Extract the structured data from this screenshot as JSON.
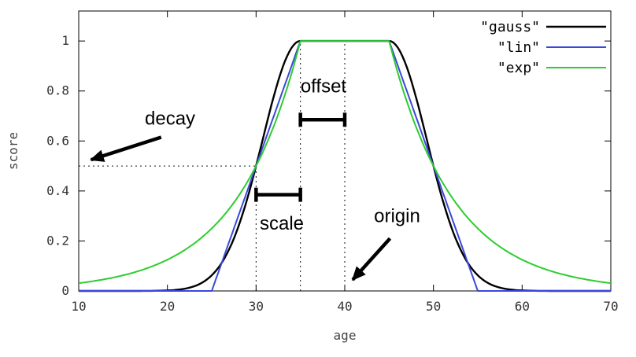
{
  "figure": {
    "background": "#ffffff",
    "border_color": "#000000",
    "guide_color": "#111111",
    "tick_label_color": "#333333",
    "axis_label_color": "#444444",
    "annotation_color": "#000000"
  },
  "chart_data": {
    "type": "line",
    "title": "",
    "xlabel": "age",
    "ylabel": "score",
    "xlim": [
      10,
      70
    ],
    "ylim": [
      0,
      1.12
    ],
    "x_ticks": [
      10,
      20,
      30,
      40,
      50,
      60,
      70
    ],
    "y_ticks": [
      0,
      0.2,
      0.4,
      0.6,
      0.8,
      1
    ],
    "grid": false,
    "legend_position": "top-right-inside",
    "decay_params": {
      "origin": 40,
      "offset": 5,
      "scale": 5,
      "decay": 0.5
    },
    "sample_ages": [
      10,
      15,
      20,
      25,
      30,
      35,
      40,
      45,
      50,
      55,
      60,
      65,
      70
    ],
    "series": [
      {
        "name": "\"gauss\"",
        "fn": "gauss",
        "color": "#000000",
        "width": 2.4,
        "sample_scores": [
          0,
          1.52e-05,
          0.00195,
          0.0625,
          0.5,
          1,
          1,
          1,
          0.5,
          0.0625,
          0.00195,
          1.52e-05,
          0
        ]
      },
      {
        "name": "\"lin\"",
        "fn": "lin",
        "color": "#3a48d8",
        "width": 2,
        "sample_scores": [
          0,
          0,
          0,
          0,
          0.5,
          1,
          1,
          1,
          0.5,
          0,
          0,
          0,
          0
        ]
      },
      {
        "name": "\"exp\"",
        "fn": "exp",
        "color": "#2ecc2e",
        "width": 2,
        "sample_scores": [
          0.031,
          0.063,
          0.125,
          0.25,
          0.5,
          1,
          1,
          1,
          0.5,
          0.25,
          0.125,
          0.063,
          0.031
        ]
      }
    ],
    "guides": {
      "vertical": [
        {
          "x": 30,
          "y_top": 0.5
        },
        {
          "x": 35,
          "y_top": 1
        },
        {
          "x": 40,
          "y_top": 1
        }
      ],
      "horizontal": [
        {
          "y": 0.5,
          "x_from": 10,
          "x_to": 30
        }
      ]
    },
    "annotations": {
      "brackets": [
        {
          "label": "offset",
          "x_from": 35,
          "x_to": 40,
          "y": 0.685,
          "label_x": 37.6,
          "label_y": 0.795
        },
        {
          "label": "scale",
          "x_from": 30,
          "x_to": 35,
          "y": 0.385,
          "label_x": 32.9,
          "label_y": 0.245
        }
      ],
      "arrows": [
        {
          "label": "decay",
          "label_x": 20.3,
          "label_y": 0.665,
          "from_x": 19.3,
          "from_y": 0.615,
          "to_x": 11.4,
          "to_y": 0.525
        },
        {
          "label": "origin",
          "label_x": 45.9,
          "label_y": 0.275,
          "from_x": 45.1,
          "from_y": 0.21,
          "to_x": 40.9,
          "to_y": 0.045
        }
      ]
    }
  }
}
